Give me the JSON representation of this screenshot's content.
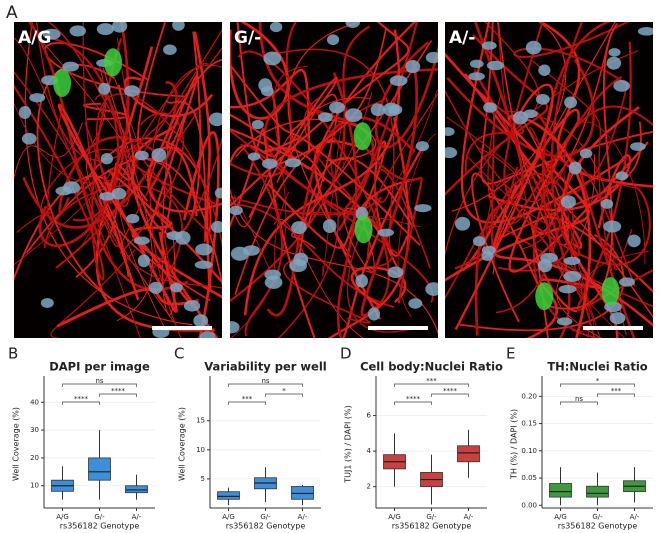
{
  "figure_label": "A",
  "images": [
    {
      "label": "A/G"
    },
    {
      "label": "G/-"
    },
    {
      "label": "A/-"
    }
  ],
  "chart_data": [
    {
      "type": "box",
      "panel_label": "B",
      "title": "DAPI per image",
      "y_label": "Well Coverage (%)",
      "x_label": "rs356182 Genotype",
      "categories": [
        "A/G",
        "G/-",
        "A/-"
      ],
      "color": "#3d8fd9",
      "boxes": [
        {
          "min": 5,
          "q1": 8,
          "median": 10,
          "q3": 12,
          "max": 17
        },
        {
          "min": 5,
          "q1": 12,
          "median": 15,
          "q3": 20,
          "max": 30
        },
        {
          "min": 5,
          "q1": 7.5,
          "median": 8.5,
          "q3": 10,
          "max": 14
        }
      ],
      "ylim": [
        2,
        48
      ],
      "yticks": [
        10,
        20,
        30,
        40
      ],
      "annotations": [
        "****",
        "****",
        "ns"
      ]
    },
    {
      "type": "box",
      "panel_label": "C",
      "title": "Variability per well",
      "y_label": "Well Coverage (%)",
      "x_label": "rs356182 Genotype",
      "categories": [
        "A/G",
        "G/-",
        "A/-"
      ],
      "color": "#3d8fd9",
      "boxes": [
        {
          "min": 0.5,
          "q1": 1.5,
          "median": 2,
          "q3": 2.8,
          "max": 3.5
        },
        {
          "min": 1,
          "q1": 3.3,
          "median": 4.3,
          "q3": 5.2,
          "max": 7
        },
        {
          "min": 0.5,
          "q1": 1.5,
          "median": 2.5,
          "q3": 3.7,
          "max": 4
        }
      ],
      "ylim": [
        0,
        22
      ],
      "yticks": [
        5,
        10,
        15
      ],
      "annotations": [
        "***",
        "*",
        "ns"
      ]
    },
    {
      "type": "box",
      "panel_label": "D",
      "title": "Cell body:Nuclei Ratio",
      "y_label": "TUJ1 (%) / DAPI (%)",
      "x_label": "rs356182 Genotype",
      "categories": [
        "A/G",
        "G/-",
        "A/-"
      ],
      "color": "#c8403f",
      "boxes": [
        {
          "min": 2,
          "q1": 3,
          "median": 3.4,
          "q3": 3.8,
          "max": 5
        },
        {
          "min": 1,
          "q1": 2,
          "median": 2.4,
          "q3": 2.8,
          "max": 3.8
        },
        {
          "min": 2.5,
          "q1": 3.4,
          "median": 3.9,
          "q3": 4.3,
          "max": 5.2
        }
      ],
      "ylim": [
        0.8,
        8
      ],
      "yticks": [
        2,
        4,
        6
      ],
      "annotations": [
        "****",
        "****",
        "***"
      ]
    },
    {
      "type": "box",
      "panel_label": "E",
      "title": "TH:Nuclei Ratio",
      "y_label": "TH (%) / DAPI (%)",
      "x_label": "rs356182 Genotype",
      "categories": [
        "A/G",
        "G/-",
        "A/-"
      ],
      "color": "#3f9a3f",
      "boxes": [
        {
          "min": 0,
          "q1": 0.015,
          "median": 0.025,
          "q3": 0.04,
          "max": 0.07
        },
        {
          "min": 0,
          "q1": 0.015,
          "median": 0.022,
          "q3": 0.035,
          "max": 0.06
        },
        {
          "min": 0.005,
          "q1": 0.025,
          "median": 0.035,
          "q3": 0.045,
          "max": 0.07
        }
      ],
      "ylim": [
        -0.005,
        0.23
      ],
      "yticks": [
        {
          "value": 0,
          "label": "0.00"
        },
        0.05,
        {
          "value": 0.1,
          "label": "0.10"
        },
        0.15,
        {
          "value": 0.2,
          "label": "0.20"
        }
      ],
      "annotations": [
        "ns",
        "***",
        "*"
      ]
    }
  ]
}
